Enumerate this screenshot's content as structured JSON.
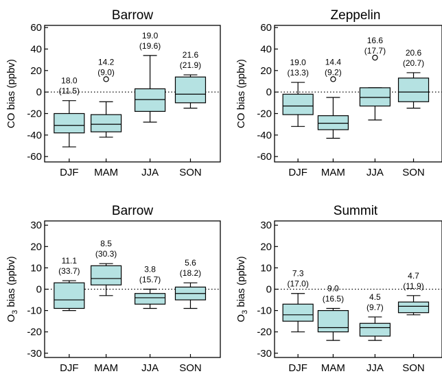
{
  "chart_data": [
    {
      "type": "box",
      "title": "Barrow",
      "ylabel": "CO bias (ppbv)",
      "ylim": [
        -65,
        62
      ],
      "yticks": [
        -60,
        -40,
        -20,
        0,
        20,
        40,
        60
      ],
      "categories": [
        "DJF",
        "MAM",
        "JJA",
        "SON"
      ],
      "zero_line": "dotted",
      "boxes": [
        {
          "whisker_low": -51,
          "q1": -38,
          "median": -31,
          "q3": -20,
          "whisker_high": -8,
          "outliers": []
        },
        {
          "whisker_low": -42,
          "q1": -37,
          "median": -30,
          "q3": -21,
          "whisker_high": -9,
          "outliers": [
            12
          ]
        },
        {
          "whisker_low": -28,
          "q1": -18,
          "median": -7,
          "q3": 3,
          "whisker_high": 34,
          "outliers": []
        },
        {
          "whisker_low": -15,
          "q1": -10,
          "median": -2,
          "q3": 14,
          "whisker_high": 16,
          "outliers": []
        }
      ],
      "annotations": [
        {
          "top": "18.0",
          "bottom": "(11.5)"
        },
        {
          "top": "14.2",
          "bottom": "(9.0)"
        },
        {
          "top": "19.0",
          "bottom": "(19.6)"
        },
        {
          "top": "21.6",
          "bottom": "(21.9)"
        }
      ]
    },
    {
      "type": "box",
      "title": "Zeppelin",
      "ylabel": "CO bias (ppbv)",
      "ylim": [
        -65,
        62
      ],
      "yticks": [
        -60,
        -40,
        -20,
        0,
        20,
        40,
        60
      ],
      "categories": [
        "DJF",
        "MAM",
        "JJA",
        "SON"
      ],
      "zero_line": "dotted",
      "boxes": [
        {
          "whisker_low": -32,
          "q1": -21,
          "median": -13,
          "q3": -2,
          "whisker_high": 9,
          "outliers": []
        },
        {
          "whisker_low": -43,
          "q1": -35,
          "median": -29,
          "q3": -22,
          "whisker_high": -5,
          "outliers": [
            12
          ]
        },
        {
          "whisker_low": -26,
          "q1": -13,
          "median": -5,
          "q3": 4,
          "whisker_high": 4,
          "outliers": [
            32
          ]
        },
        {
          "whisker_low": -15,
          "q1": -9,
          "median": 0,
          "q3": 13,
          "whisker_high": 18,
          "outliers": []
        }
      ],
      "annotations": [
        {
          "top": "19.0",
          "bottom": "(13.3)"
        },
        {
          "top": "14.4",
          "bottom": "(9.2)"
        },
        {
          "top": "16.6",
          "bottom": "(17.7)"
        },
        {
          "top": "20.6",
          "bottom": "(20.7)"
        }
      ]
    },
    {
      "type": "box",
      "title": "Barrow",
      "ylabel_main": "O",
      "ylabel_sub": "3",
      "ylabel_rest": " bias (ppbv)",
      "ylim": [
        -32,
        32
      ],
      "yticks": [
        -30,
        -20,
        -10,
        0,
        10,
        20,
        30
      ],
      "categories": [
        "DJF",
        "MAM",
        "JJA",
        "SON"
      ],
      "zero_line": "dotted",
      "boxes": [
        {
          "whisker_low": -10,
          "q1": -9,
          "median": -5,
          "q3": 3,
          "whisker_high": 4,
          "outliers": []
        },
        {
          "whisker_low": -3,
          "q1": 2,
          "median": 5,
          "q3": 11,
          "whisker_high": 12,
          "outliers": []
        },
        {
          "whisker_low": -9,
          "q1": -7,
          "median": -4,
          "q3": -2,
          "whisker_high": 0,
          "outliers": []
        },
        {
          "whisker_low": -9,
          "q1": -5,
          "median": -2,
          "q3": 1,
          "whisker_high": 3,
          "outliers": []
        }
      ],
      "annotations": [
        {
          "top": "11.1",
          "bottom": "(33.7)"
        },
        {
          "top": "8.5",
          "bottom": "(30.3)"
        },
        {
          "top": "3.8",
          "bottom": "(15.7)"
        },
        {
          "top": "5.6",
          "bottom": "(18.2)"
        }
      ]
    },
    {
      "type": "box",
      "title": "Summit",
      "ylabel_main": "O",
      "ylabel_sub": "3",
      "ylabel_rest": " bias (ppbv)",
      "ylim": [
        -32,
        32
      ],
      "yticks": [
        -30,
        -20,
        -10,
        0,
        10,
        20,
        30
      ],
      "categories": [
        "DJF",
        "MAM",
        "JJA",
        "SON"
      ],
      "zero_line": "dotted",
      "boxes": [
        {
          "whisker_low": -20,
          "q1": -15,
          "median": -12,
          "q3": -7,
          "whisker_high": -2,
          "outliers": []
        },
        {
          "whisker_low": -24,
          "q1": -20,
          "median": -18,
          "q3": -10,
          "whisker_high": -9,
          "outliers": []
        },
        {
          "whisker_low": -24,
          "q1": -22,
          "median": -18,
          "q3": -16,
          "whisker_high": -13,
          "outliers": []
        },
        {
          "whisker_low": -12,
          "q1": -11,
          "median": -8,
          "q3": -6,
          "whisker_high": -3,
          "outliers": []
        }
      ],
      "annotations": [
        {
          "top": "7.3",
          "bottom": "(17.0)"
        },
        {
          "top": "9.0",
          "bottom": "(16.5)"
        },
        {
          "top": "4.5",
          "bottom": "(9.7)"
        },
        {
          "top": "4.7",
          "bottom": "(11.9)"
        }
      ]
    }
  ],
  "colors": {
    "box_fill": "#b5e2e2",
    "line": "#000000"
  }
}
